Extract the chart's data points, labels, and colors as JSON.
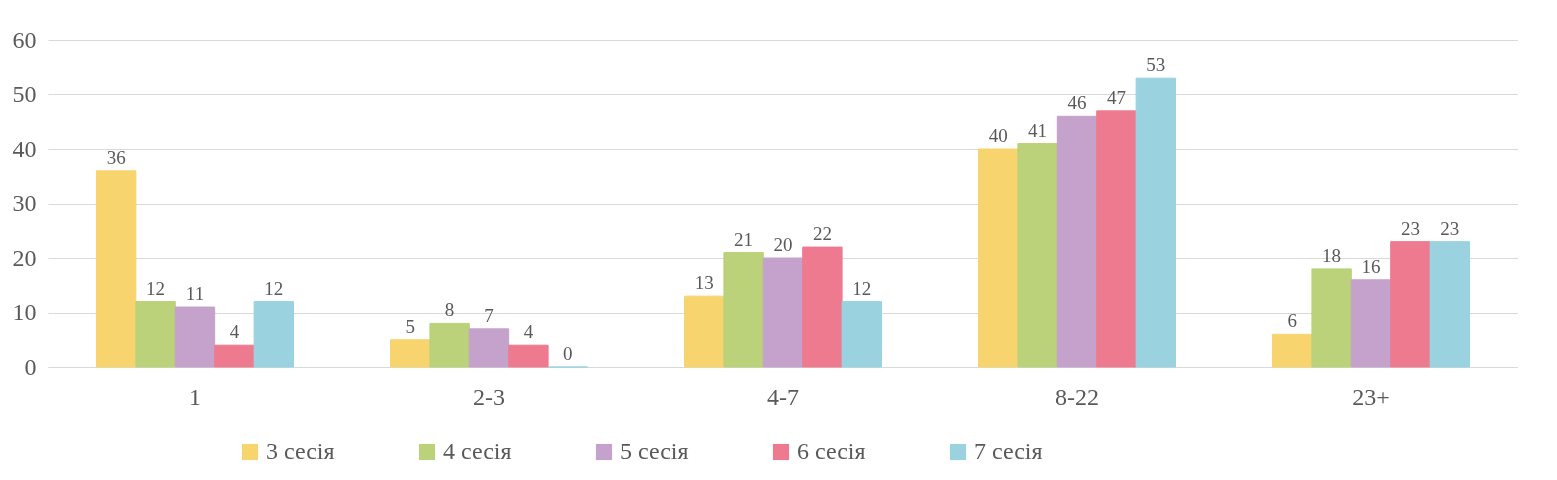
{
  "chart_data": {
    "type": "bar",
    "categories": [
      "1",
      "2-3",
      "4-7",
      "8-22",
      "23+"
    ],
    "series": [
      {
        "name": "3 сесія",
        "color": "#f7d46e",
        "values": [
          36,
          5,
          13,
          40,
          6
        ]
      },
      {
        "name": "4 сесія",
        "color": "#bbd17a",
        "values": [
          12,
          8,
          21,
          41,
          18
        ]
      },
      {
        "name": "5 сесія",
        "color": "#c4a2cb",
        "values": [
          11,
          7,
          20,
          46,
          16
        ]
      },
      {
        "name": "6 сесія",
        "color": "#ee7a90",
        "values": [
          4,
          4,
          22,
          47,
          23
        ]
      },
      {
        "name": "7 сесія",
        "color": "#9ad2e0",
        "values": [
          12,
          0,
          12,
          53,
          23
        ]
      }
    ],
    "ylim": [
      0,
      60
    ],
    "yticks": [
      0,
      10,
      20,
      30,
      40,
      50,
      60
    ],
    "grid": "y",
    "legend": "bottom",
    "data_labels": true
  }
}
